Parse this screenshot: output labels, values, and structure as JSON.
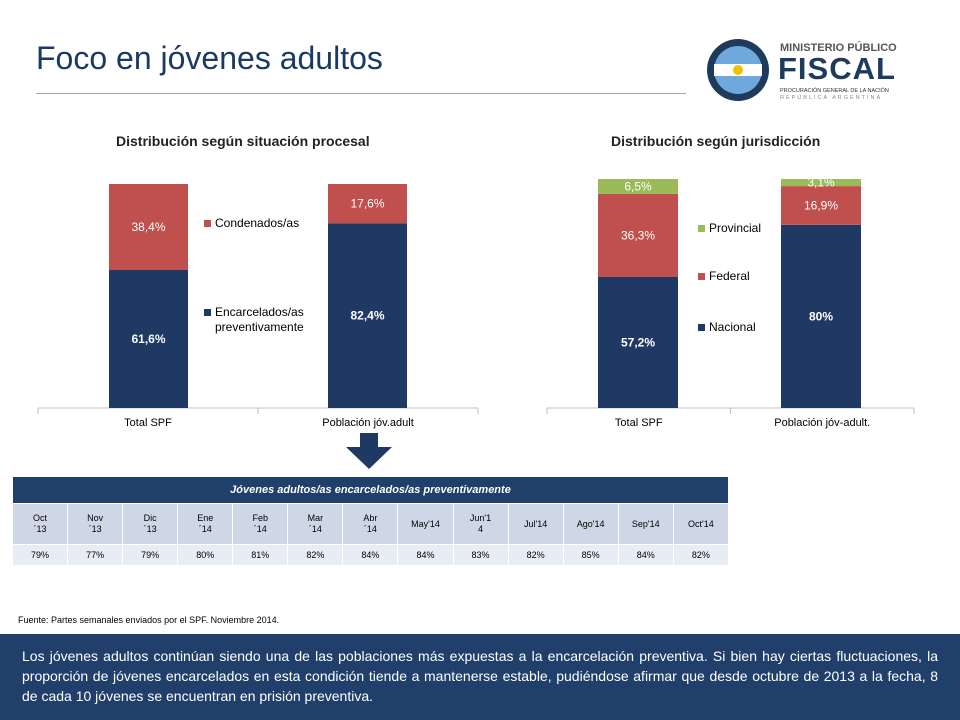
{
  "title": "Foco en jóvenes adultos",
  "logo": {
    "line1": "MINISTERIO PÚBLICO",
    "line2": "FISCAL",
    "line3": "PROCURACIÓN GENERAL DE LA NACIÓN",
    "line4": "REPÚBLICA ARGENTINA"
  },
  "chart_data": [
    {
      "type": "bar",
      "stacked": true,
      "title": "Distribución según situación procesal",
      "categories": [
        "Total SPF",
        "Población jóv.adult"
      ],
      "series": [
        {
          "name": "Encarcelados/as preventivamente",
          "values": [
            61.6,
            82.4
          ],
          "labels": [
            "61,6%",
            "82,4%"
          ],
          "color": "#1f3864"
        },
        {
          "name": "Condenados/as",
          "values": [
            38.4,
            17.6
          ],
          "labels": [
            "38,4%",
            "17,6%"
          ],
          "color": "#c0504d"
        }
      ],
      "ylim": [
        0,
        100
      ],
      "grid": false,
      "legend": "right"
    },
    {
      "type": "bar",
      "stacked": true,
      "title": "Distribución según jurisdicción",
      "categories": [
        "Total SPF",
        "Población jóv-adult."
      ],
      "series": [
        {
          "name": "Nacional",
          "values": [
            57.2,
            80
          ],
          "labels": [
            "57,2%",
            "80%"
          ],
          "color": "#1f3864"
        },
        {
          "name": "Federal",
          "values": [
            36.3,
            16.9
          ],
          "labels": [
            "36,3%",
            "16,9%"
          ],
          "color": "#c0504d"
        },
        {
          "name": "Provincial",
          "values": [
            6.5,
            3.1
          ],
          "labels": [
            "6,5%",
            "3,1%"
          ],
          "color": "#9bbb59"
        }
      ],
      "ylim": [
        0,
        100
      ],
      "grid": false,
      "legend": "right"
    }
  ],
  "table": {
    "title": "Jóvenes adultos/as encarcelados/as preventivamente",
    "months": [
      "Oct ´13",
      "Nov ´13",
      "Dic ´13",
      "Ene ´14",
      "Feb ´14",
      "Mar ´14",
      "Abr ´14",
      "May'14",
      "Jun'1 4",
      "Jul'14",
      "Ago'14",
      "Sep'14",
      "Oct'14"
    ],
    "values": [
      "79%",
      "77%",
      "79%",
      "80%",
      "81%",
      "82%",
      "84%",
      "84%",
      "83%",
      "82%",
      "85%",
      "84%",
      "82%"
    ]
  },
  "source": "Fuente: Partes semanales enviados por el SPF. Noviembre 2014.",
  "footer": "Los jóvenes adultos continúan siendo una de las poblaciones más expuestas a la encarcelación preventiva. Si bien hay ciertas fluctuaciones, la proporción de jóvenes encarcelados en esta condición tiende a mantenerse estable, pudiéndose afirmar que desde octubre de 2013 a la fecha, 8 de cada 10 jóvenes se encuentran en prisión preventiva.",
  "colors": {
    "navy": "#1f3864",
    "red": "#c0504d",
    "green": "#9bbb59",
    "header": "#213f6b"
  }
}
